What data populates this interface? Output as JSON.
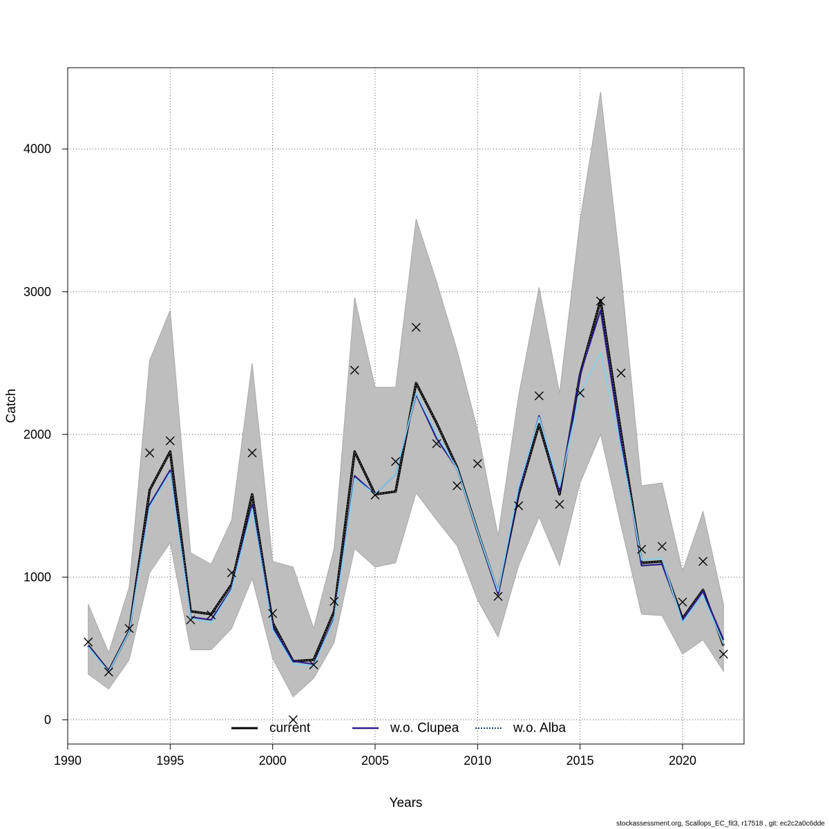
{
  "footer": "stockassessment.org, Scallops_EC_fit3, r17518 , git: ec2c2a0c6dde",
  "chart_data": {
    "type": "line",
    "xlabel": "Years",
    "ylabel": "Catch",
    "xlim": [
      1990,
      2023
    ],
    "ylim": [
      -170,
      4570
    ],
    "xticks": [
      1990,
      1995,
      2000,
      2005,
      2010,
      2015,
      2020
    ],
    "yticks": [
      0,
      1000,
      2000,
      3000,
      4000
    ],
    "grid": true,
    "legend_position": "bottom",
    "x": [
      1991,
      1992,
      1993,
      1994,
      1995,
      1996,
      1997,
      1998,
      1999,
      2000,
      2001,
      2002,
      2003,
      2004,
      2005,
      2006,
      2007,
      2008,
      2009,
      2010,
      2011,
      2012,
      2013,
      2014,
      2015,
      2016,
      2017,
      2018,
      2019,
      2020,
      2021,
      2022
    ],
    "band": {
      "color": "#bebebe",
      "lower": [
        320,
        215,
        420,
        1030,
        1240,
        490,
        490,
        640,
        990,
        430,
        160,
        290,
        540,
        1200,
        1070,
        1100,
        1590,
        1400,
        1220,
        840,
        580,
        1080,
        1420,
        1080,
        1660,
        2000,
        1360,
        740,
        730,
        460,
        560,
        340
      ],
      "upper": [
        810,
        470,
        930,
        2520,
        2870,
        1170,
        1090,
        1400,
        2500,
        1110,
        1070,
        640,
        1200,
        2960,
        2330,
        2330,
        3510,
        3070,
        2590,
        2030,
        1290,
        2270,
        3030,
        2290,
        3500,
        4400,
        3130,
        1640,
        1660,
        1040,
        1460,
        810
      ]
    },
    "series": [
      {
        "name": "current",
        "color": "#000000",
        "style": "solid",
        "values": [
          520,
          340,
          620,
          1610,
          1880,
          760,
          740,
          950,
          1580,
          680,
          410,
          420,
          760,
          1880,
          1580,
          1600,
          2360,
          2080,
          1770,
          1320,
          890,
          1580,
          2070,
          1580,
          2420,
          2940,
          2010,
          1100,
          1110,
          710,
          910,
          520
        ]
      },
      {
        "name": "w.o. Clupea",
        "color": "#2a1e8a",
        "style": "solid",
        "values": [
          520,
          340,
          620,
          1510,
          1750,
          720,
          700,
          920,
          1510,
          650,
          410,
          390,
          710,
          1710,
          1580,
          1720,
          2280,
          1970,
          1760,
          1320,
          880,
          1600,
          2130,
          1600,
          2420,
          2870,
          1950,
          1080,
          1090,
          700,
          900,
          560
        ]
      },
      {
        "name": "w.o. Alba",
        "color": "#87ceeb",
        "style": "dotted",
        "values": [
          510,
          335,
          615,
          1490,
          1730,
          710,
          680,
          910,
          1480,
          630,
          390,
          380,
          700,
          1690,
          1580,
          1720,
          2290,
          2000,
          1760,
          1320,
          900,
          1630,
          2120,
          1630,
          2290,
          2570,
          1900,
          1120,
          1130,
          680,
          870,
          530
        ]
      }
    ],
    "observations": {
      "marker": "x",
      "values": [
        545,
        335,
        640,
        1870,
        1955,
        700,
        735,
        1030,
        1870,
        745,
        0,
        385,
        830,
        2450,
        1575,
        1810,
        2750,
        1935,
        1640,
        1795,
        865,
        1500,
        2270,
        1510,
        2290,
        2935,
        2430,
        1195,
        1215,
        825,
        1110,
        460
      ]
    }
  }
}
